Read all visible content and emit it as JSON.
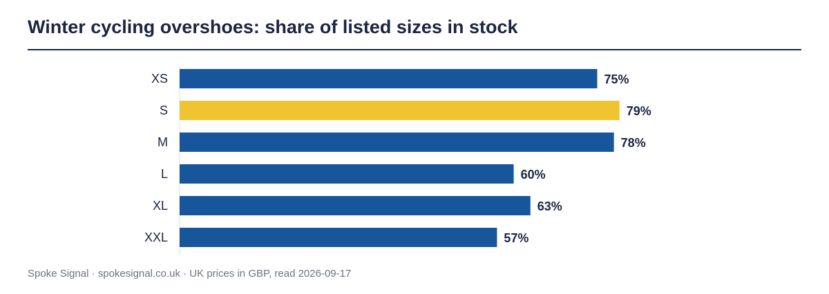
{
  "chart_data": {
    "type": "bar",
    "orientation": "horizontal",
    "title": "Winter cycling overshoes: share of listed sizes in stock",
    "categories": [
      "XS",
      "S",
      "M",
      "L",
      "XL",
      "XXL"
    ],
    "values": [
      75,
      79,
      78,
      60,
      63,
      57
    ],
    "value_labels": [
      "75%",
      "79%",
      "78%",
      "60%",
      "63%",
      "57%"
    ],
    "value_unit": "%",
    "xlim": [
      0,
      100
    ],
    "highlight_category": "S",
    "colors": {
      "bar": "#17569b",
      "highlight": "#f0c430",
      "text": "#1b2540",
      "axis": "#dddddd",
      "source": "#6b7380"
    },
    "grid": false,
    "legend": "none"
  },
  "footer": {
    "source": "Spoke Signal · spokesignal.co.uk · UK prices in GBP, read 2026-09-17"
  }
}
